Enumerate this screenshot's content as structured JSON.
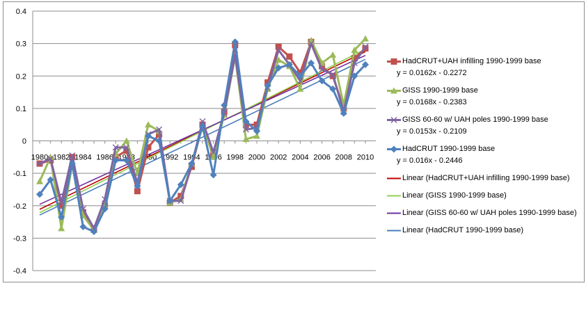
{
  "chart_data": {
    "type": "line",
    "title": "",
    "xlabel": "",
    "ylabel": "",
    "ylim": [
      -0.4,
      0.4
    ],
    "y_ticks": [
      0.4,
      0.3,
      0.2,
      0.1,
      0,
      -0.1,
      -0.2,
      -0.3,
      -0.4
    ],
    "y_tick_labels": [
      "0.4",
      "0.3",
      "0.2",
      "0.1",
      "0",
      "-0.1",
      "-0.2",
      "-0.3",
      "-0.4"
    ],
    "x_tick_labels": [
      "1980",
      "1982",
      "1984",
      "1986",
      "1988",
      "1990",
      "1992",
      "1994",
      "1996",
      "1998",
      "2000",
      "2002",
      "2004",
      "2006",
      "2008",
      "2010"
    ],
    "x": [
      1980,
      1981,
      1982,
      1983,
      1984,
      1985,
      1986,
      1987,
      1988,
      1989,
      1990,
      1991,
      1992,
      1993,
      1994,
      1995,
      1996,
      1997,
      1998,
      1999,
      2000,
      2001,
      2002,
      2003,
      2004,
      2005,
      2006,
      2007,
      2008,
      2009,
      2010
    ],
    "grid": "horizontal major gridlines",
    "legend_position": "right",
    "series": [
      {
        "name": "HadCRUT+UAH infilling 1990-1999 base",
        "color": "#c0504d",
        "marker": "square",
        "values": [
          -0.07,
          -0.06,
          -0.2,
          -0.05,
          -0.22,
          -0.27,
          -0.2,
          -0.05,
          -0.03,
          -0.155,
          -0.02,
          0.02,
          -0.19,
          -0.17,
          -0.08,
          0.05,
          -0.04,
          0.09,
          0.295,
          0.05,
          0.05,
          0.18,
          0.29,
          0.26,
          0.21,
          0.305,
          0.23,
          0.2,
          0.1,
          0.255,
          0.285
        ]
      },
      {
        "name": "GISS 1990-1999 base",
        "color": "#9bbb59",
        "marker": "triangle",
        "values": [
          -0.125,
          -0.05,
          -0.27,
          -0.07,
          -0.23,
          -0.275,
          -0.2,
          -0.04,
          0.0,
          -0.1,
          0.05,
          0.03,
          -0.19,
          -0.18,
          -0.07,
          0.05,
          -0.05,
          0.08,
          0.26,
          0.005,
          0.015,
          0.16,
          0.25,
          0.23,
          0.16,
          0.31,
          0.24,
          0.265,
          0.11,
          0.28,
          0.315
        ]
      },
      {
        "name": "GISS 60-60 w/ UAH poles 1990-1999 base",
        "color": "#8064a2",
        "marker": "x",
        "values": [
          -0.07,
          -0.055,
          -0.19,
          -0.045,
          -0.21,
          -0.27,
          -0.18,
          -0.02,
          -0.02,
          -0.13,
          0.02,
          0.035,
          -0.185,
          -0.185,
          -0.075,
          0.06,
          -0.035,
          0.085,
          0.265,
          0.035,
          0.04,
          0.165,
          0.28,
          0.235,
          0.185,
          0.3,
          0.22,
          0.205,
          0.09,
          0.24,
          0.29
        ]
      },
      {
        "name": "HadCRUT 1990-1999 base",
        "color": "#4f81bd",
        "marker": "diamond",
        "values": [
          -0.165,
          -0.12,
          -0.235,
          -0.07,
          -0.265,
          -0.28,
          -0.21,
          -0.06,
          -0.06,
          -0.14,
          0.015,
          0.0,
          -0.185,
          -0.135,
          -0.07,
          0.045,
          -0.105,
          0.11,
          0.305,
          0.06,
          0.03,
          0.17,
          0.225,
          0.235,
          0.2,
          0.24,
          0.185,
          0.16,
          0.085,
          0.2,
          0.235
        ]
      }
    ],
    "trendlines": [
      {
        "name": "Linear (HadCRUT+UAH infilling 1990-1999 base)",
        "color": "#c00000",
        "slope": 0.0162,
        "intercept": -0.2272,
        "equation": "y = 0.0162x - 0.2272"
      },
      {
        "name": "Linear (GISS 1990-1999 base)",
        "color": "#92d050",
        "slope": 0.0168,
        "intercept": -0.2383,
        "equation": "y = 0.0168x - 0.2383"
      },
      {
        "name": "Linear (GISS 60-60 w/ UAH poles 1990-1999 base)",
        "color": "#7030a0",
        "slope": 0.0153,
        "intercept": -0.2109,
        "equation": "y = 0.0153x - 0.2109"
      },
      {
        "name": "Linear (HadCRUT 1990-1999 base)",
        "color": "#4a7ebb",
        "slope": 0.016,
        "intercept": -0.2446,
        "equation": "y = 0.016x - 0.2446"
      }
    ]
  },
  "legend": {
    "entries": [
      {
        "label": "HadCRUT+UAH infilling 1990-1999 base",
        "equation": "y = 0.0162x - 0.2272",
        "color": "#c0504d",
        "kind": "marker-square"
      },
      {
        "label": "GISS 1990-1999 base",
        "equation": "y = 0.0168x - 0.2383",
        "color": "#9bbb59",
        "kind": "marker-triangle"
      },
      {
        "label": "GISS 60-60 w/ UAH poles 1990-1999 base",
        "equation": "y = 0.0153x - 0.2109",
        "color": "#8064a2",
        "kind": "marker-x"
      },
      {
        "label": "HadCRUT 1990-1999 base",
        "equation": "y = 0.016x - 0.2446",
        "color": "#4f81bd",
        "kind": "marker-diamond"
      },
      {
        "label": "Linear (HadCRUT+UAH  infilling 1990-1999 base)",
        "color": "#c00000",
        "kind": "line"
      },
      {
        "label": "Linear (GISS 1990-1999 base)",
        "color": "#92d050",
        "kind": "line"
      },
      {
        "label": "Linear (GISS 60-60 w/ UAH poles 1990-1999 base)",
        "color": "#7030a0",
        "kind": "line"
      },
      {
        "label": "Linear (HadCRUT  1990-1999 base)",
        "color": "#4a7ebb",
        "kind": "line"
      }
    ]
  }
}
